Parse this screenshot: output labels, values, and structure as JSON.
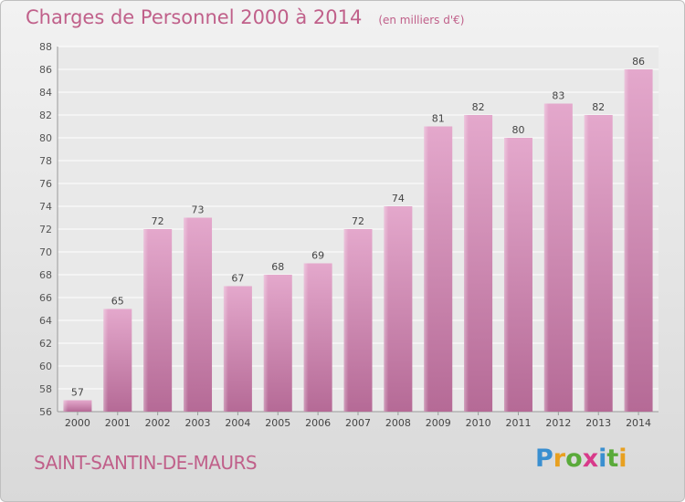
{
  "header": {
    "title": "Charges de Personnel 2000 à 2014",
    "subtitle": "(en milliers d'€)"
  },
  "footer": {
    "commune": "SAINT-SANTIN-DE-MAURS",
    "logo_text": "Proxiti"
  },
  "colors": {
    "bar_top": "#e4a8cc",
    "bar_bottom": "#b56a96",
    "title": "#c0608a"
  },
  "chart_data": {
    "type": "bar",
    "title": "Charges de Personnel 2000 à 2014",
    "subtitle": "(en milliers d'€)",
    "categories": [
      "2000",
      "2001",
      "2002",
      "2003",
      "2004",
      "2005",
      "2006",
      "2007",
      "2008",
      "2009",
      "2010",
      "2011",
      "2012",
      "2013",
      "2014"
    ],
    "values": [
      57,
      65,
      72,
      73,
      67,
      68,
      69,
      72,
      74,
      81,
      82,
      80,
      83,
      82,
      86
    ],
    "ylim": [
      56,
      88
    ],
    "yticks": [
      56,
      58,
      60,
      62,
      64,
      66,
      68,
      70,
      72,
      74,
      76,
      78,
      80,
      82,
      84,
      86,
      88
    ],
    "grid": true,
    "data_labels": true
  }
}
